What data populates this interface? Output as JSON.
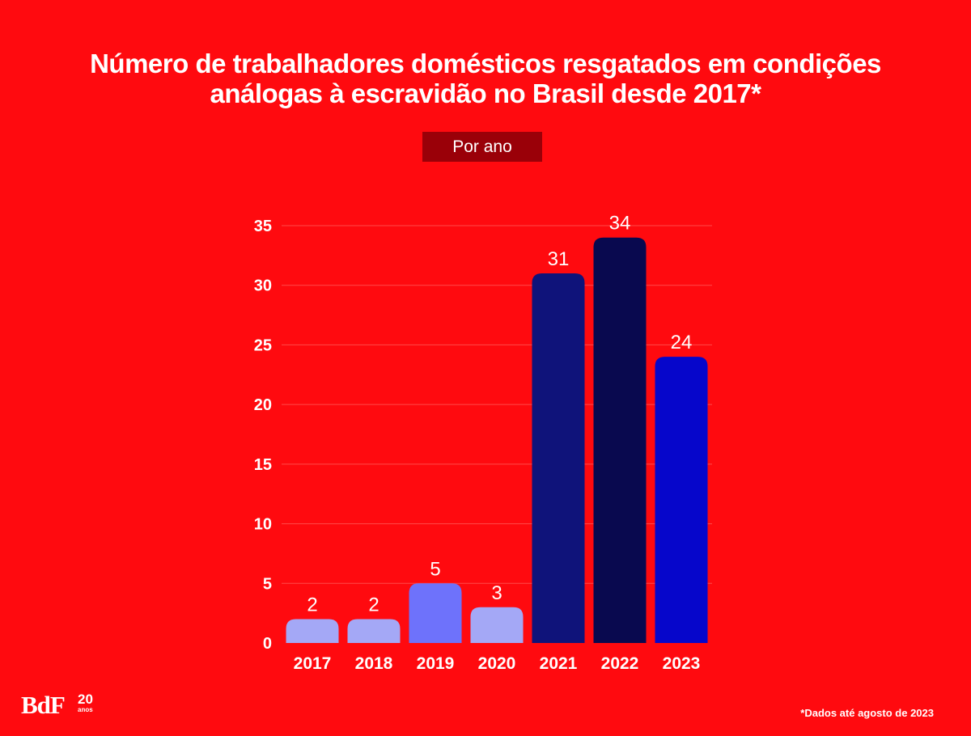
{
  "title_lines": [
    "Número de trabalhadores domésticos resgatados em condições",
    "análogas à escravidão no Brasil desde 2017*"
  ],
  "subtitle": "Por ano",
  "footnote": "*Dados até agosto de 2023",
  "logo": {
    "text": "BdF",
    "badge_number": "20",
    "badge_text": "anos"
  },
  "colors": {
    "background": "#ff0a0f",
    "subtitle_box": "#9a0008",
    "grid": "#ff4a4a",
    "text": "#ffffff"
  },
  "chart_data": {
    "type": "bar",
    "categories": [
      "2017",
      "2018",
      "2019",
      "2020",
      "2021",
      "2022",
      "2023"
    ],
    "values": [
      2,
      2,
      5,
      3,
      31,
      34,
      24
    ],
    "bar_colors": [
      "#a4a8f6",
      "#a4a8f6",
      "#6e72fb",
      "#a4a8f6",
      "#0f137a",
      "#09094f",
      "#0606cb"
    ],
    "ylim": [
      0,
      35
    ],
    "yticks": [
      0,
      5,
      10,
      15,
      20,
      25,
      30,
      35
    ],
    "grid": true,
    "data_labels": true,
    "xlabel": "",
    "ylabel": ""
  }
}
